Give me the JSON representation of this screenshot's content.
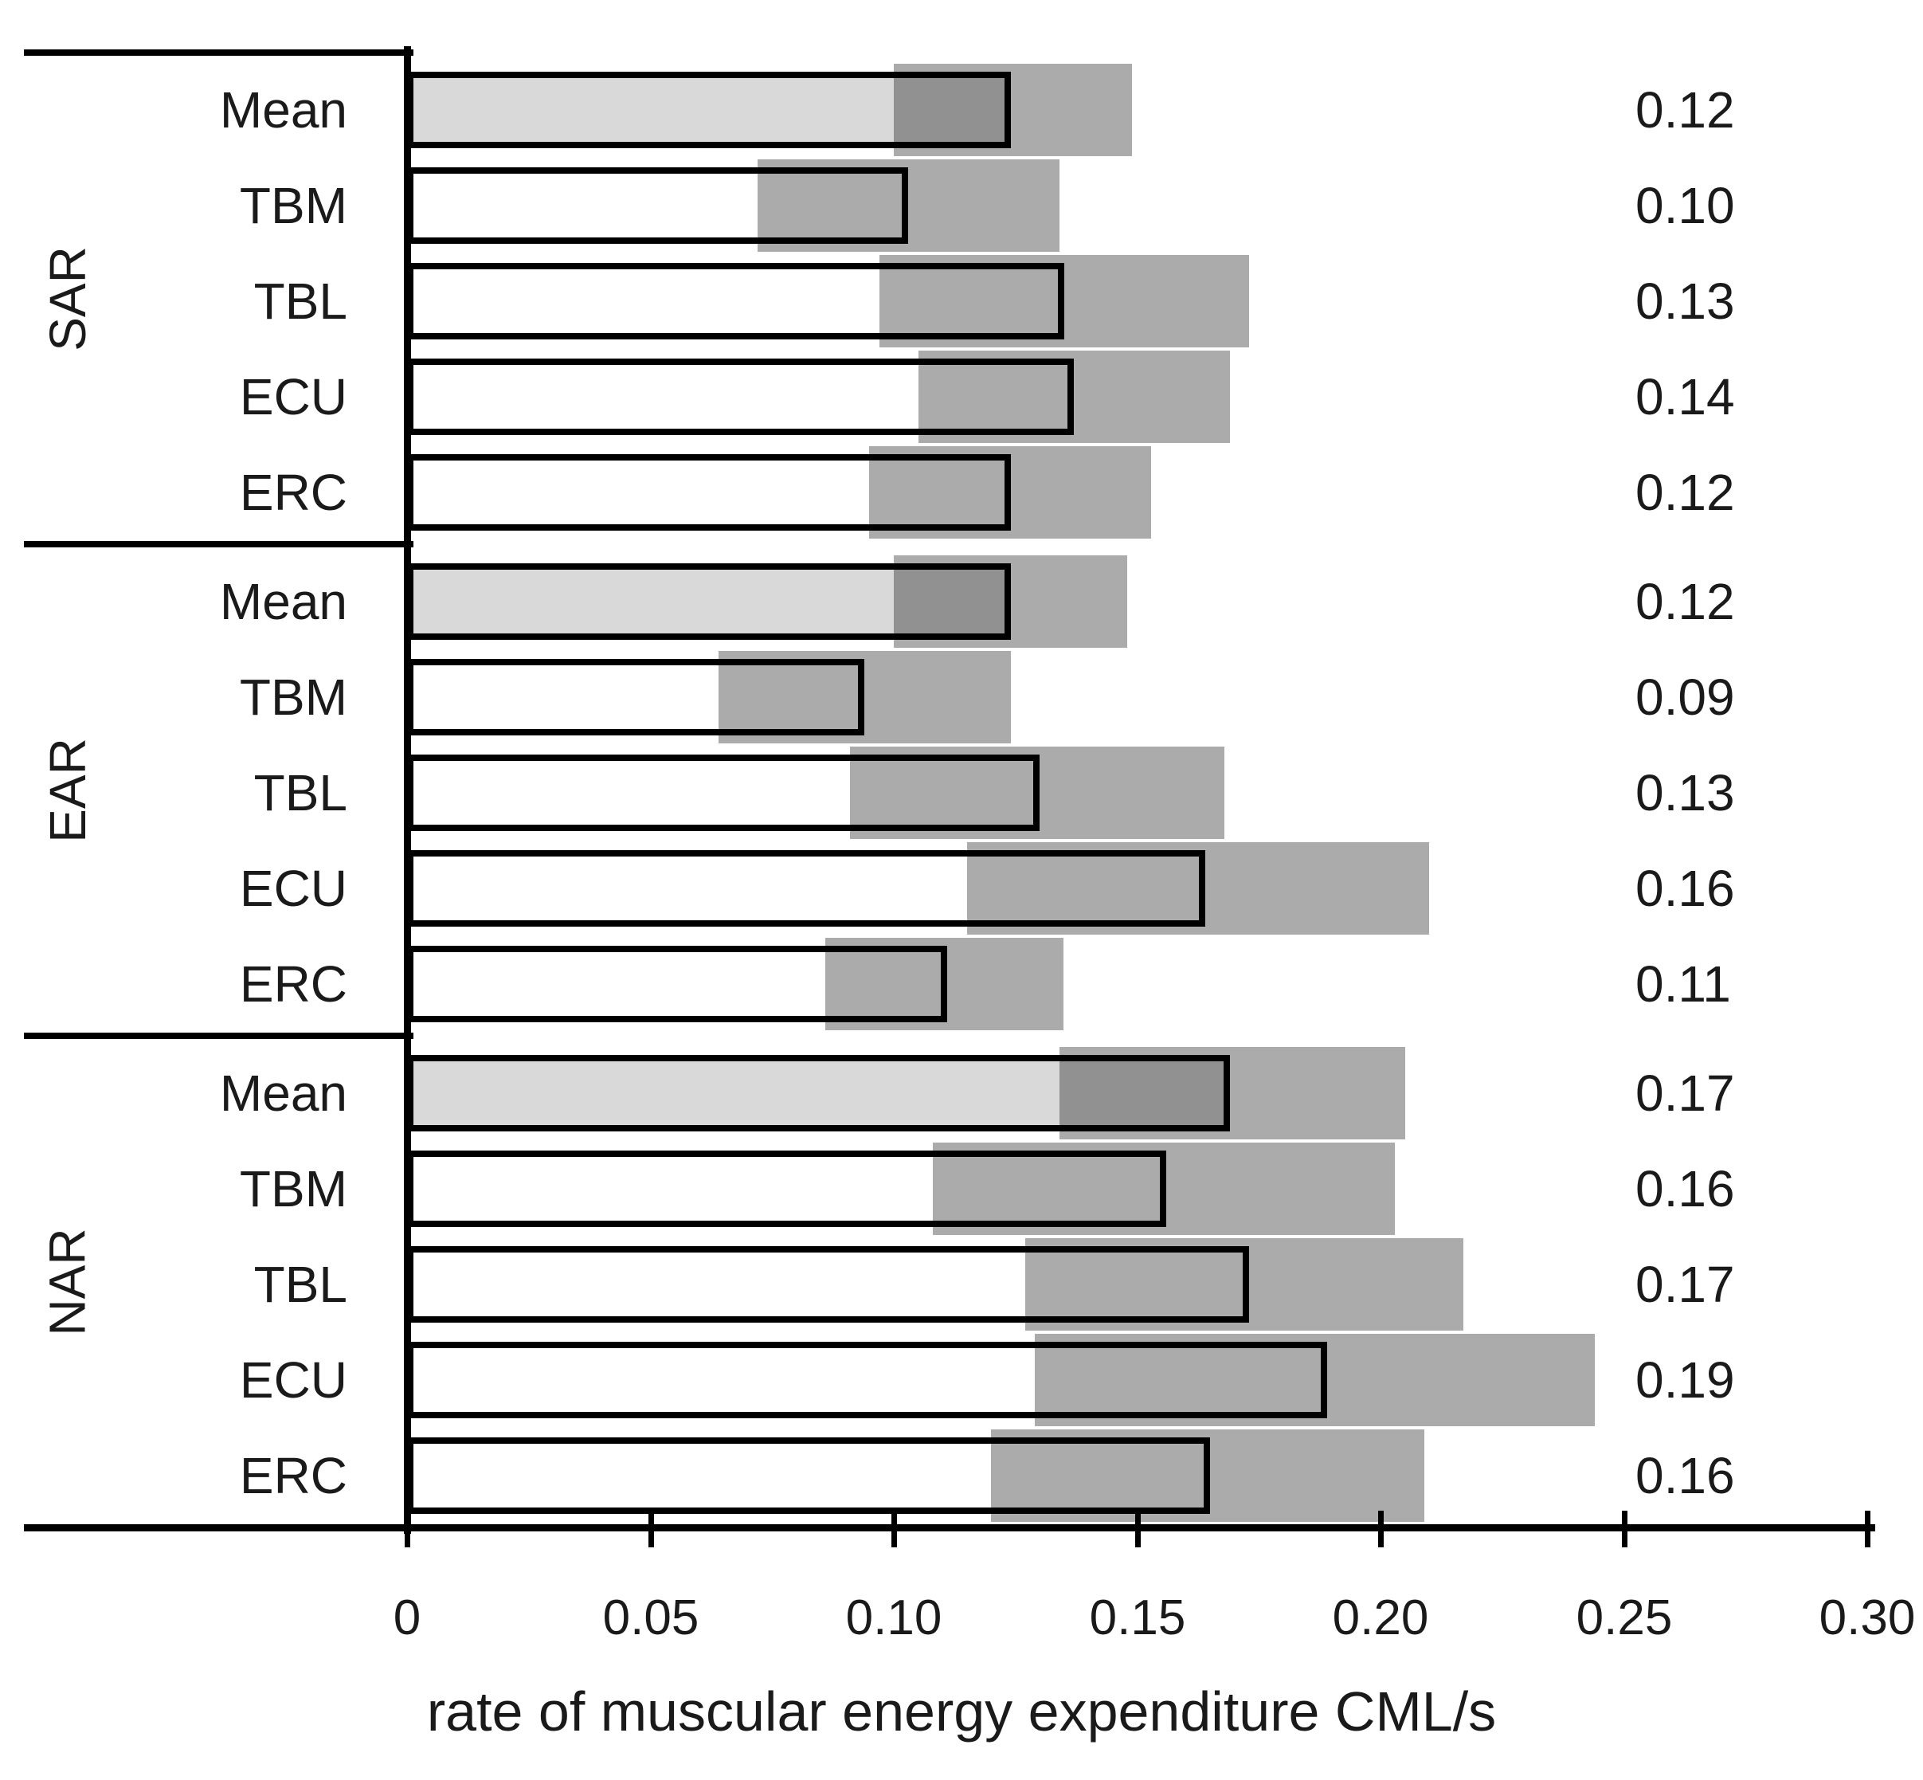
{
  "chart_data": {
    "type": "bar",
    "orientation": "horizontal",
    "title": "",
    "xlabel": "rate of muscular energy expenditure CML/s",
    "ylabel": "",
    "xlim": [
      0,
      0.3
    ],
    "grid": false,
    "legend": "none",
    "xticks": [
      {
        "value": 0.0,
        "label": "0"
      },
      {
        "value": 0.05,
        "label": "0.05"
      },
      {
        "value": 0.1,
        "label": "0.10"
      },
      {
        "value": 0.15,
        "label": "0.15"
      },
      {
        "value": 0.2,
        "label": "0.20"
      },
      {
        "value": 0.25,
        "label": "0.25"
      },
      {
        "value": 0.3,
        "label": "0.30"
      }
    ],
    "groups": [
      {
        "name": "SAR",
        "rows": [
          {
            "label": "Mean",
            "value": 0.124,
            "value_label": "0.12",
            "band_low": 0.1,
            "band_high": 0.149,
            "is_mean": true
          },
          {
            "label": "TBM",
            "value": 0.103,
            "value_label": "0.10",
            "band_low": 0.072,
            "band_high": 0.134,
            "is_mean": false
          },
          {
            "label": "TBL",
            "value": 0.135,
            "value_label": "0.13",
            "band_low": 0.097,
            "band_high": 0.173,
            "is_mean": false
          },
          {
            "label": "ECU",
            "value": 0.137,
            "value_label": "0.14",
            "band_low": 0.105,
            "band_high": 0.169,
            "is_mean": false
          },
          {
            "label": "ERC",
            "value": 0.124,
            "value_label": "0.12",
            "band_low": 0.095,
            "band_high": 0.153,
            "is_mean": false
          }
        ]
      },
      {
        "name": "EAR",
        "rows": [
          {
            "label": "Mean",
            "value": 0.124,
            "value_label": "0.12",
            "band_low": 0.1,
            "band_high": 0.148,
            "is_mean": true
          },
          {
            "label": "TBM",
            "value": 0.094,
            "value_label": "0.09",
            "band_low": 0.064,
            "band_high": 0.124,
            "is_mean": false
          },
          {
            "label": "TBL",
            "value": 0.13,
            "value_label": "0.13",
            "band_low": 0.091,
            "band_high": 0.168,
            "is_mean": false
          },
          {
            "label": "ECU",
            "value": 0.164,
            "value_label": "0.16",
            "band_low": 0.115,
            "band_high": 0.21,
            "is_mean": false
          },
          {
            "label": "ERC",
            "value": 0.111,
            "value_label": "0.11",
            "band_low": 0.086,
            "band_high": 0.135,
            "is_mean": false
          }
        ]
      },
      {
        "name": "NAR",
        "rows": [
          {
            "label": "Mean",
            "value": 0.169,
            "value_label": "0.17",
            "band_low": 0.134,
            "band_high": 0.205,
            "is_mean": true
          },
          {
            "label": "TBM",
            "value": 0.156,
            "value_label": "0.16",
            "band_low": 0.108,
            "band_high": 0.203,
            "is_mean": false
          },
          {
            "label": "TBL",
            "value": 0.173,
            "value_label": "0.17",
            "band_low": 0.127,
            "band_high": 0.217,
            "is_mean": false
          },
          {
            "label": "ECU",
            "value": 0.189,
            "value_label": "0.19",
            "band_low": 0.129,
            "band_high": 0.244,
            "is_mean": false
          },
          {
            "label": "ERC",
            "value": 0.165,
            "value_label": "0.16",
            "band_low": 0.12,
            "band_high": 0.209,
            "is_mean": false
          }
        ]
      }
    ],
    "colors": {
      "mean_bar_fill": "#d9d9d9",
      "bar_fill": "#ffffff",
      "bar_border": "#000000",
      "error_band_overlay": "rgba(0,0,0,0.33)",
      "error_band_on_white": "#ababab",
      "error_band_on_mean": "#919191",
      "text": "#1a1a1a"
    }
  }
}
